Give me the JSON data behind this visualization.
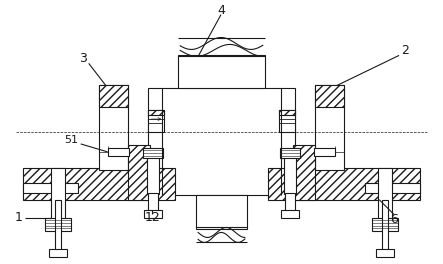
{
  "bg": "#ffffff",
  "lc": "#1a1a1a",
  "fw": 4.43,
  "fh": 2.64,
  "dpi": 100
}
